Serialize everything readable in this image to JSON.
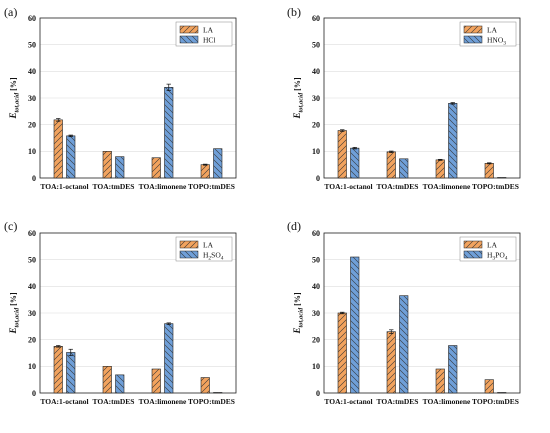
{
  "colors": {
    "LA": "#f2a35e",
    "acid": "#6f9fd8",
    "stroke": "#222222",
    "hatch": "#333333"
  },
  "chart_data": [
    {
      "panel_label": "(a)",
      "type": "bar",
      "categories": [
        "TOA:1-octanol",
        "TOA:tmDES",
        "TOA:limonene",
        "TOPO:tmDES"
      ],
      "ylabel": {
        "main": "E",
        "sub": "tot,acid",
        "unit": "[%]"
      },
      "ylim": [
        0,
        60
      ],
      "yticks": [
        "0",
        "10",
        "20",
        "30",
        "40",
        "50",
        "60"
      ],
      "legend": {
        "position": "top-right",
        "entries": [
          {
            "text": "LA",
            "sub": ""
          },
          {
            "text": "HCl",
            "sub": ""
          }
        ]
      },
      "series": [
        {
          "name": "LA",
          "values": [
            21.8,
            10.0,
            7.6,
            5.0
          ],
          "errors": [
            0.5,
            0,
            0,
            0.2
          ]
        },
        {
          "name": "HCl",
          "values": [
            15.8,
            8.0,
            34.0,
            11.0
          ],
          "errors": [
            0.3,
            0,
            1.2,
            0
          ]
        }
      ]
    },
    {
      "panel_label": "(b)",
      "type": "bar",
      "categories": [
        "TOA:1-octanol",
        "TOA:tmDES",
        "TOA:limonene",
        "TOPO:tmDES"
      ],
      "ylabel": {
        "main": "E",
        "sub": "tot,acid",
        "unit": "[%]"
      },
      "ylim": [
        0,
        60
      ],
      "yticks": [
        "0",
        "10",
        "20",
        "30",
        "40",
        "50",
        "60"
      ],
      "legend": {
        "position": "top-right",
        "entries": [
          {
            "text": "LA",
            "sub": ""
          },
          {
            "text": "HNO",
            "sub": "3"
          }
        ]
      },
      "series": [
        {
          "name": "LA",
          "values": [
            17.8,
            9.8,
            6.8,
            5.5
          ],
          "errors": [
            0.3,
            0.3,
            0.2,
            0.2
          ]
        },
        {
          "name": "HNO3",
          "values": [
            11.2,
            7.2,
            28.0,
            0.2
          ],
          "errors": [
            0.3,
            0,
            0.3,
            0
          ]
        }
      ]
    },
    {
      "panel_label": "(c)",
      "type": "bar",
      "categories": [
        "TOA:1-octanol",
        "TOA:tmDES",
        "TOA:limonene",
        "TOPO:tmDES"
      ],
      "ylabel": {
        "main": "E",
        "sub": "tot,acid",
        "unit": "[%]"
      },
      "ylim": [
        0,
        60
      ],
      "yticks": [
        "0",
        "10",
        "20",
        "30",
        "40",
        "50",
        "60"
      ],
      "legend": {
        "position": "top-right",
        "entries": [
          {
            "text": "LA",
            "sub": ""
          },
          {
            "text": "H",
            "sub": "2",
            "tail": "SO",
            "sub2": "4"
          }
        ]
      },
      "series": [
        {
          "name": "LA",
          "values": [
            17.5,
            10.0,
            9.0,
            5.8
          ],
          "errors": [
            0.3,
            0,
            0,
            0
          ]
        },
        {
          "name": "H2SO4",
          "values": [
            15.2,
            6.8,
            26.0,
            0.2
          ],
          "errors": [
            1.2,
            0,
            0.3,
            0
          ]
        }
      ]
    },
    {
      "panel_label": "(d)",
      "type": "bar",
      "categories": [
        "TOA:1-octanol",
        "TOA:tmDES",
        "TOA:limonene",
        "TOPO:tmDES"
      ],
      "ylabel": {
        "main": "E",
        "sub": "tot,acid",
        "unit": "[%]"
      },
      "ylim": [
        0,
        60
      ],
      "yticks": [
        "0",
        "10",
        "20",
        "30",
        "40",
        "50",
        "60"
      ],
      "legend": {
        "position": "top-right",
        "entries": [
          {
            "text": "LA",
            "sub": ""
          },
          {
            "text": "H",
            "sub": "3",
            "tail": "PO",
            "sub2": "4"
          }
        ]
      },
      "series": [
        {
          "name": "LA",
          "values": [
            30.0,
            23.0,
            9.0,
            5.0
          ],
          "errors": [
            0.3,
            0.7,
            0,
            0
          ]
        },
        {
          "name": "H3PO4",
          "values": [
            51.0,
            36.5,
            17.8,
            0.2
          ],
          "errors": [
            0,
            0,
            0,
            0
          ]
        }
      ]
    }
  ]
}
